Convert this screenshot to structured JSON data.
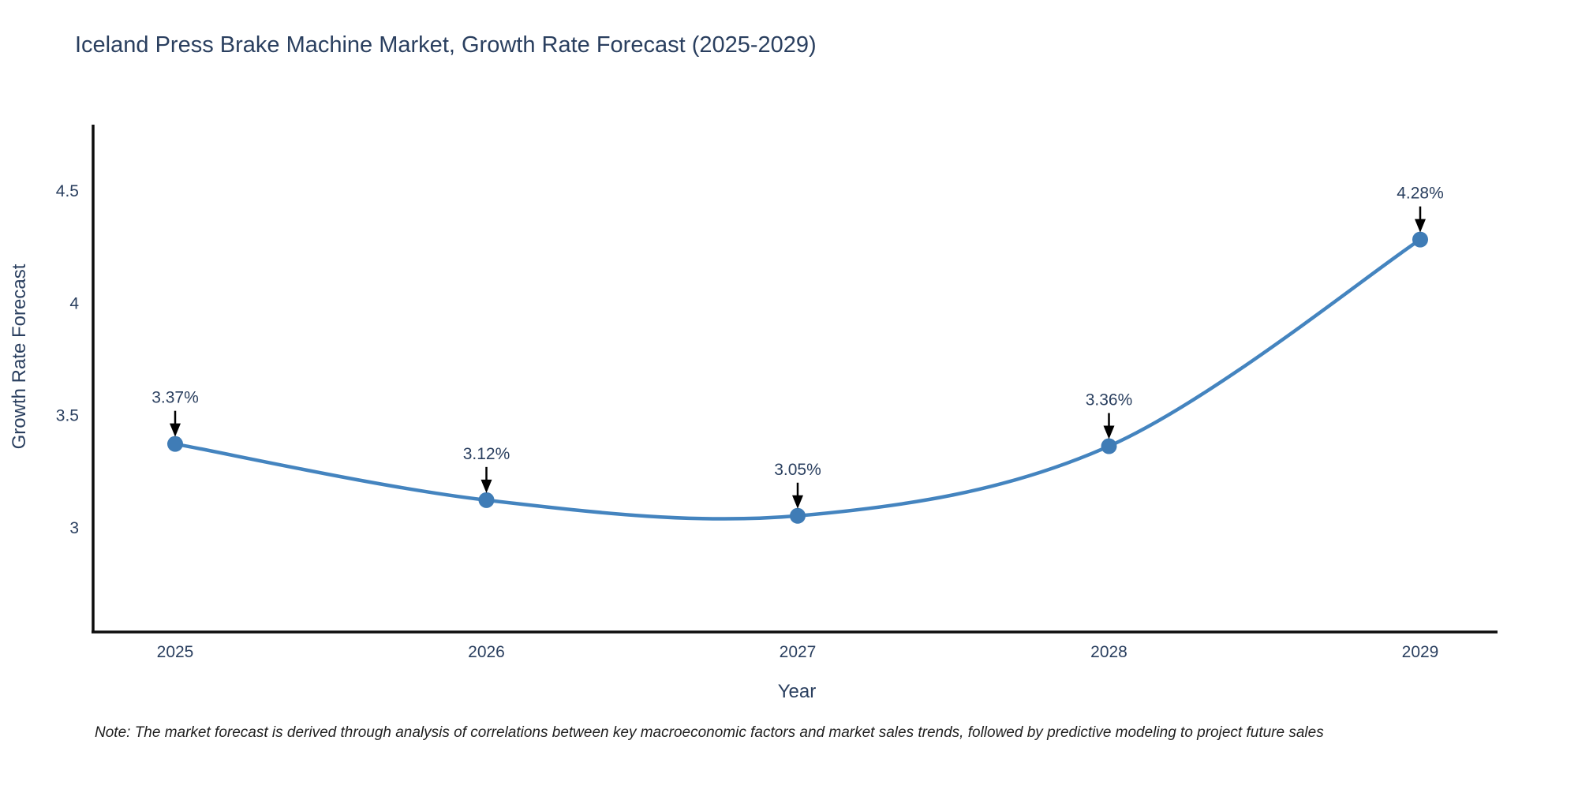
{
  "chart_data": {
    "type": "line",
    "title": "Iceland Press Brake Machine Market, Growth Rate Forecast (2025-2029)",
    "xlabel": "Year",
    "ylabel": "Growth Rate Forecast",
    "x": [
      2025,
      2026,
      2027,
      2028,
      2029
    ],
    "x_tick_labels": [
      "2025",
      "2026",
      "2027",
      "2028",
      "2029"
    ],
    "series": [
      {
        "name": "Growth Rate Forecast",
        "values": [
          3.37,
          3.12,
          3.05,
          3.36,
          4.28
        ],
        "point_labels": [
          "3.37%",
          "3.12%",
          "3.05%",
          "3.36%",
          "4.28%"
        ]
      }
    ],
    "yticks": [
      3,
      3.5,
      4,
      4.5
    ],
    "ytick_labels": [
      "3",
      "3.5",
      "4",
      "4.5"
    ],
    "ylim": [
      2.53,
      4.78
    ],
    "grid": false,
    "legend": false,
    "line_smooth": true,
    "colors": {
      "line": "#4484bf",
      "marker": "#3f7cb6",
      "axis": "#0d0d0d",
      "text": "#2a3f5f",
      "annotation_arrow": "#000000",
      "background": "#ffffff"
    }
  },
  "note": "Note: The market forecast is derived through analysis of correlations between key macroeconomic factors and market sales trends, followed by predictive modeling to project future sales"
}
